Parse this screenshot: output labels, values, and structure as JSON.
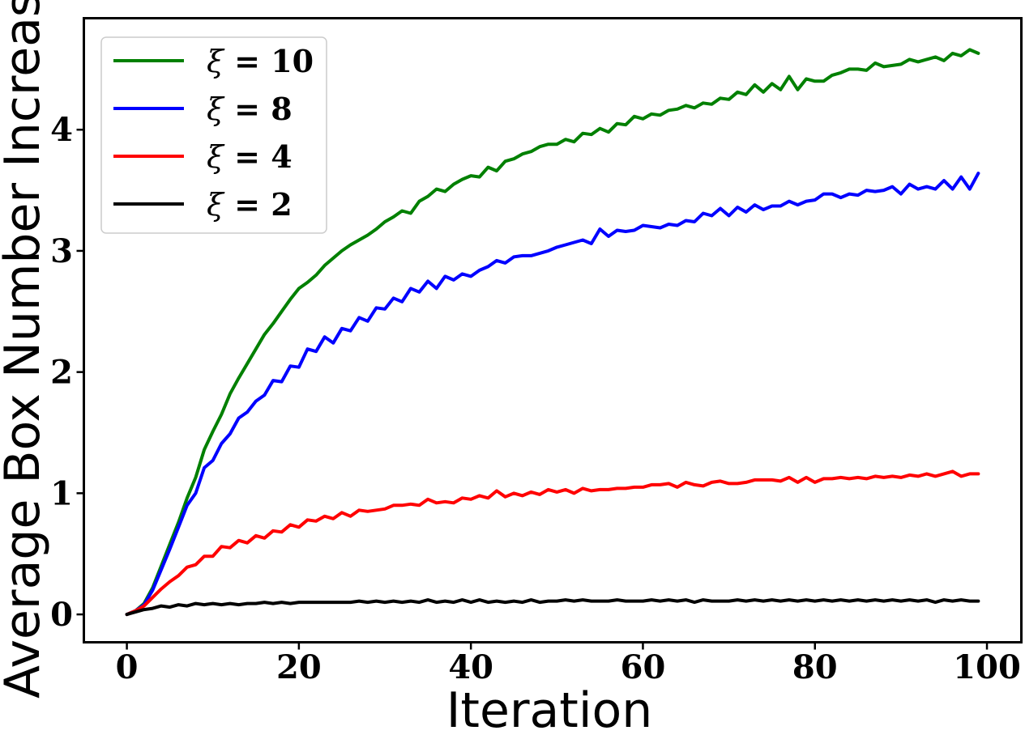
{
  "chart_data": {
    "type": "line",
    "xlabel": "Iteration",
    "ylabel": "Average Box Number Increase",
    "xlim": [
      -5,
      104
    ],
    "ylim": [
      -0.23,
      4.92
    ],
    "xticks": [
      0,
      20,
      40,
      60,
      80,
      100
    ],
    "yticks": [
      0,
      1,
      2,
      3,
      4
    ],
    "grid": false,
    "legend_position": "upper-left",
    "x_start": 0,
    "x_step": 1,
    "series": [
      {
        "name": "ξ = 10",
        "color": "#008000",
        "values": [
          0.0,
          0.03,
          0.09,
          0.22,
          0.4,
          0.58,
          0.76,
          0.96,
          1.13,
          1.36,
          1.51,
          1.65,
          1.82,
          1.95,
          2.07,
          2.19,
          2.31,
          2.4,
          2.5,
          2.6,
          2.69,
          2.74,
          2.8,
          2.88,
          2.94,
          3.0,
          3.05,
          3.09,
          3.13,
          3.18,
          3.24,
          3.28,
          3.33,
          3.31,
          3.41,
          3.45,
          3.51,
          3.49,
          3.55,
          3.59,
          3.62,
          3.61,
          3.69,
          3.66,
          3.74,
          3.76,
          3.8,
          3.82,
          3.86,
          3.88,
          3.88,
          3.92,
          3.9,
          3.97,
          3.96,
          4.01,
          3.98,
          4.05,
          4.04,
          4.11,
          4.09,
          4.13,
          4.12,
          4.16,
          4.17,
          4.2,
          4.18,
          4.22,
          4.21,
          4.26,
          4.25,
          4.31,
          4.29,
          4.37,
          4.31,
          4.38,
          4.33,
          4.44,
          4.33,
          4.42,
          4.4,
          4.4,
          4.45,
          4.47,
          4.5,
          4.5,
          4.49,
          4.55,
          4.52,
          4.53,
          4.54,
          4.58,
          4.56,
          4.58,
          4.6,
          4.57,
          4.63,
          4.61,
          4.66,
          4.63
        ]
      },
      {
        "name": "ξ = 8",
        "color": "#0000ff",
        "values": [
          0.0,
          0.03,
          0.08,
          0.2,
          0.37,
          0.54,
          0.72,
          0.9,
          1.0,
          1.21,
          1.27,
          1.41,
          1.49,
          1.62,
          1.67,
          1.76,
          1.81,
          1.93,
          1.92,
          2.05,
          2.04,
          2.19,
          2.17,
          2.29,
          2.24,
          2.36,
          2.34,
          2.45,
          2.42,
          2.53,
          2.52,
          2.61,
          2.58,
          2.69,
          2.66,
          2.75,
          2.69,
          2.79,
          2.76,
          2.81,
          2.79,
          2.84,
          2.87,
          2.92,
          2.9,
          2.95,
          2.96,
          2.96,
          2.98,
          3.0,
          3.03,
          3.05,
          3.07,
          3.09,
          3.06,
          3.18,
          3.12,
          3.17,
          3.16,
          3.17,
          3.21,
          3.2,
          3.19,
          3.22,
          3.21,
          3.25,
          3.24,
          3.31,
          3.29,
          3.35,
          3.29,
          3.36,
          3.32,
          3.38,
          3.34,
          3.37,
          3.37,
          3.41,
          3.38,
          3.41,
          3.42,
          3.47,
          3.47,
          3.44,
          3.47,
          3.46,
          3.5,
          3.49,
          3.5,
          3.53,
          3.47,
          3.55,
          3.51,
          3.53,
          3.51,
          3.58,
          3.51,
          3.61,
          3.51,
          3.64
        ]
      },
      {
        "name": "ξ = 4",
        "color": "#ff0000",
        "values": [
          0.0,
          0.03,
          0.07,
          0.14,
          0.21,
          0.27,
          0.32,
          0.39,
          0.41,
          0.48,
          0.48,
          0.56,
          0.55,
          0.61,
          0.59,
          0.65,
          0.63,
          0.69,
          0.68,
          0.74,
          0.72,
          0.78,
          0.77,
          0.81,
          0.79,
          0.84,
          0.81,
          0.86,
          0.85,
          0.86,
          0.87,
          0.9,
          0.9,
          0.91,
          0.9,
          0.95,
          0.92,
          0.93,
          0.92,
          0.96,
          0.95,
          0.98,
          0.96,
          1.02,
          0.97,
          1.0,
          0.98,
          1.01,
          0.99,
          1.03,
          1.01,
          1.03,
          1.0,
          1.04,
          1.02,
          1.03,
          1.03,
          1.04,
          1.04,
          1.05,
          1.05,
          1.07,
          1.07,
          1.08,
          1.05,
          1.09,
          1.07,
          1.06,
          1.09,
          1.1,
          1.08,
          1.08,
          1.09,
          1.11,
          1.11,
          1.11,
          1.1,
          1.13,
          1.09,
          1.13,
          1.09,
          1.12,
          1.12,
          1.13,
          1.12,
          1.13,
          1.12,
          1.14,
          1.13,
          1.14,
          1.13,
          1.15,
          1.14,
          1.16,
          1.14,
          1.16,
          1.18,
          1.14,
          1.16,
          1.16
        ]
      },
      {
        "name": "ξ = 2",
        "color": "#000000",
        "values": [
          0.0,
          0.02,
          0.04,
          0.05,
          0.07,
          0.06,
          0.08,
          0.07,
          0.09,
          0.08,
          0.09,
          0.08,
          0.09,
          0.08,
          0.09,
          0.09,
          0.1,
          0.09,
          0.1,
          0.09,
          0.1,
          0.1,
          0.1,
          0.1,
          0.1,
          0.1,
          0.1,
          0.11,
          0.1,
          0.11,
          0.1,
          0.11,
          0.1,
          0.11,
          0.1,
          0.12,
          0.1,
          0.11,
          0.1,
          0.12,
          0.1,
          0.12,
          0.1,
          0.11,
          0.1,
          0.11,
          0.1,
          0.12,
          0.1,
          0.11,
          0.11,
          0.12,
          0.11,
          0.12,
          0.11,
          0.11,
          0.11,
          0.12,
          0.11,
          0.11,
          0.11,
          0.12,
          0.11,
          0.12,
          0.11,
          0.12,
          0.1,
          0.12,
          0.11,
          0.11,
          0.11,
          0.12,
          0.11,
          0.12,
          0.11,
          0.12,
          0.11,
          0.12,
          0.11,
          0.12,
          0.11,
          0.12,
          0.11,
          0.12,
          0.11,
          0.12,
          0.11,
          0.12,
          0.11,
          0.12,
          0.11,
          0.12,
          0.11,
          0.12,
          0.1,
          0.12,
          0.11,
          0.12,
          0.11,
          0.11
        ]
      }
    ]
  }
}
